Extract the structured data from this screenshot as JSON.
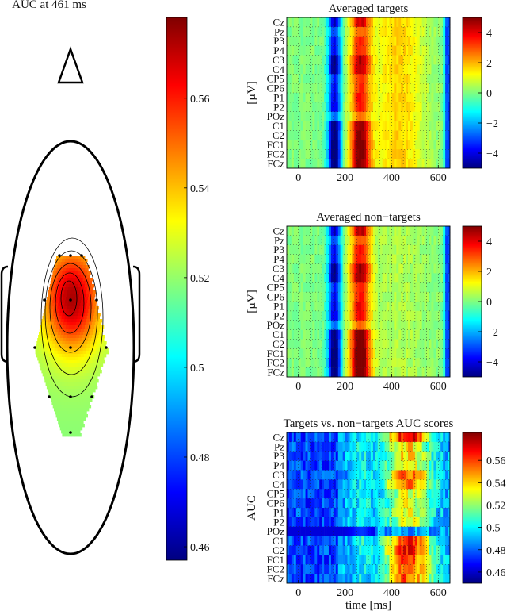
{
  "chart_data": [
    {
      "type": "topomap",
      "title": "AUC at 461 ms",
      "colorbar": {
        "range": [
          0.457,
          0.578
        ],
        "ticks": [
          "0.46",
          "0.48",
          "0.5",
          "0.52",
          "0.54",
          "0.56"
        ],
        "tick_values": [
          0.46,
          0.48,
          0.5,
          0.52,
          0.54,
          0.56
        ]
      }
    },
    {
      "type": "heatmap",
      "title": "Averaged targets",
      "ylabel": "[µV]",
      "xlabel": "",
      "rows": [
        "Cz",
        "Pz",
        "P3",
        "P4",
        "C3",
        "C4",
        "CP5",
        "CP6",
        "P1",
        "P2",
        "POz",
        "C1",
        "C2",
        "FC1",
        "FC2",
        "FCz"
      ],
      "xticks": [
        "0",
        "200",
        "400",
        "600"
      ],
      "xtick_values": [
        0,
        200,
        400,
        600
      ],
      "xlim": [
        -50,
        650
      ],
      "colorbar": {
        "range": [
          -5,
          5
        ],
        "ticks": [
          "4",
          "2",
          "0",
          "−2",
          "−4"
        ],
        "tick_values": [
          4,
          2,
          0,
          -2,
          -4
        ]
      }
    },
    {
      "type": "heatmap",
      "title": "Averaged non−targets",
      "ylabel": "[µV]",
      "xlabel": "",
      "rows": [
        "Cz",
        "Pz",
        "P3",
        "P4",
        "C3",
        "C4",
        "CP5",
        "CP6",
        "P1",
        "P2",
        "POz",
        "C1",
        "C2",
        "FC1",
        "FC2",
        "FCz"
      ],
      "xticks": [
        "0",
        "200",
        "400",
        "600"
      ],
      "xtick_values": [
        0,
        200,
        400,
        600
      ],
      "xlim": [
        -50,
        650
      ],
      "colorbar": {
        "range": [
          -5,
          5
        ],
        "ticks": [
          "4",
          "2",
          "0",
          "−2",
          "−4"
        ],
        "tick_values": [
          4,
          2,
          0,
          -2,
          -4
        ]
      }
    },
    {
      "type": "heatmap",
      "title": "Targets vs. non−targets AUC scores",
      "ylabel": "AUC",
      "xlabel": "time [ms]",
      "rows": [
        "Cz",
        "Pz",
        "P3",
        "P4",
        "C3",
        "C4",
        "CP5",
        "CP6",
        "P1",
        "P2",
        "POz",
        "C1",
        "C2",
        "FC1",
        "FC2",
        "FCz"
      ],
      "xticks": [
        "0",
        "200",
        "400",
        "600"
      ],
      "xtick_values": [
        0,
        200,
        400,
        600
      ],
      "xlim": [
        -50,
        650
      ],
      "colorbar": {
        "range": [
          0.45,
          0.585
        ],
        "ticks": [
          "0.56",
          "0.54",
          "0.52",
          "0.5",
          "0.48",
          "0.46"
        ],
        "tick_values": [
          0.56,
          0.54,
          0.52,
          0.5,
          0.48,
          0.46
        ]
      }
    }
  ]
}
